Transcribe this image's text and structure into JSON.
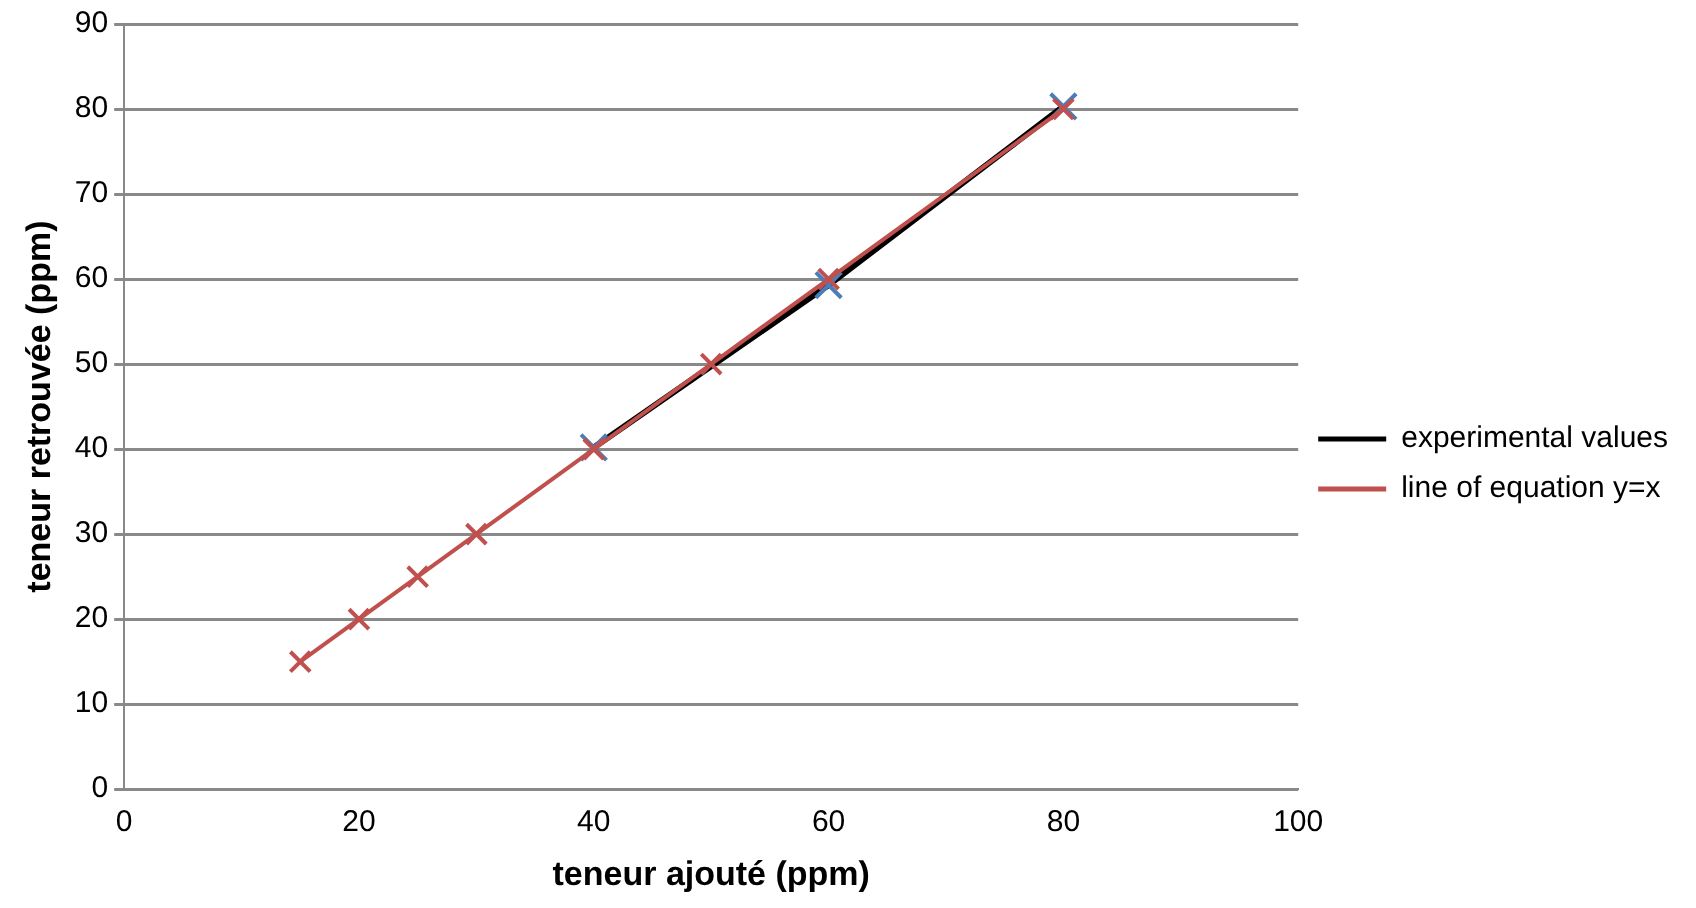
{
  "chart_data": {
    "type": "line",
    "xlabel": "teneur ajouté (ppm)",
    "ylabel": "teneur retrouvée (ppm)",
    "xlim": [
      0,
      100
    ],
    "xticks": [
      0,
      20,
      40,
      60,
      80,
      100
    ],
    "ylim": [
      0,
      90
    ],
    "yticks": [
      0,
      10,
      20,
      30,
      40,
      50,
      60,
      70,
      80,
      90
    ],
    "grid": "y",
    "legend": "right",
    "marker": "cross",
    "series": [
      {
        "name": "experimental values",
        "color": "#000000",
        "colors": [
          "#4a7ebb",
          "#4a7ebb",
          "#4a7ebb"
        ],
        "x": [
          40,
          60,
          80
        ],
        "values": [
          40.2,
          59.3,
          80.3
        ]
      },
      {
        "name": "line of equation y=x",
        "color": "#c0504d",
        "x": [
          15,
          20,
          25,
          30,
          40,
          50,
          60,
          80
        ],
        "values": [
          15,
          20,
          25,
          30,
          40,
          50,
          60,
          80
        ]
      }
    ]
  }
}
